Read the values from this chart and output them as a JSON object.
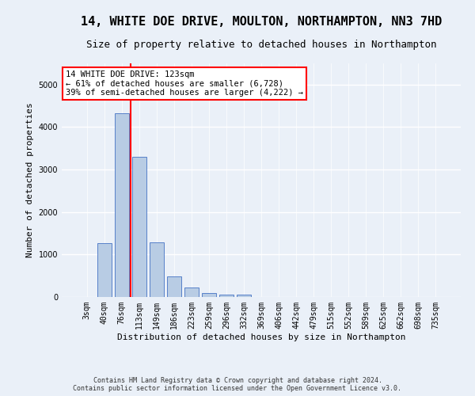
{
  "title": "14, WHITE DOE DRIVE, MOULTON, NORTHAMPTON, NN3 7HD",
  "subtitle": "Size of property relative to detached houses in Northampton",
  "xlabel": "Distribution of detached houses by size in Northampton",
  "ylabel": "Number of detached properties",
  "footer_line1": "Contains HM Land Registry data © Crown copyright and database right 2024.",
  "footer_line2": "Contains public sector information licensed under the Open Government Licence v3.0.",
  "bar_labels": [
    "3sqm",
    "40sqm",
    "76sqm",
    "113sqm",
    "149sqm",
    "186sqm",
    "223sqm",
    "259sqm",
    "296sqm",
    "332sqm",
    "369sqm",
    "406sqm",
    "442sqm",
    "479sqm",
    "515sqm",
    "552sqm",
    "589sqm",
    "625sqm",
    "662sqm",
    "698sqm",
    "735sqm"
  ],
  "bar_values": [
    0,
    1260,
    4330,
    3300,
    1280,
    480,
    215,
    90,
    65,
    55,
    0,
    0,
    0,
    0,
    0,
    0,
    0,
    0,
    0,
    0,
    0
  ],
  "bar_color": "#b8cce4",
  "bar_edge_color": "#4472c4",
  "vline_x_idx": 3,
  "vline_color": "red",
  "annotation_text": "14 WHITE DOE DRIVE: 123sqm\n← 61% of detached houses are smaller (6,728)\n39% of semi-detached houses are larger (4,222) →",
  "ylim": [
    0,
    5500
  ],
  "background_color": "#eaf0f8",
  "plot_bg_color": "#eaf0f8",
  "grid_color": "white",
  "title_fontsize": 11,
  "subtitle_fontsize": 9,
  "axis_label_fontsize": 8,
  "tick_fontsize": 7
}
